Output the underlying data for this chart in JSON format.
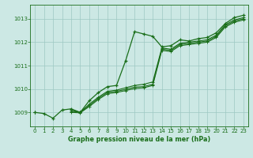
{
  "xlabel": "Graphe pression niveau de la mer (hPa)",
  "bg_color": "#cce8e4",
  "grid_color": "#9ec8c2",
  "line_color": "#1a6e1a",
  "xlim": [
    -0.5,
    23.5
  ],
  "ylim": [
    1008.4,
    1013.6
  ],
  "yticks": [
    1009,
    1010,
    1011,
    1012,
    1013
  ],
  "xticks": [
    0,
    1,
    2,
    3,
    4,
    5,
    6,
    7,
    8,
    9,
    10,
    11,
    12,
    13,
    14,
    15,
    16,
    17,
    18,
    19,
    20,
    21,
    22,
    23
  ],
  "hours": [
    0,
    1,
    2,
    3,
    4,
    5,
    6,
    7,
    8,
    9,
    10,
    11,
    12,
    13,
    14,
    15,
    16,
    17,
    18,
    19,
    20,
    21,
    22,
    23
  ],
  "line1": [
    1009.0,
    1008.95,
    1008.75,
    1009.1,
    1009.15,
    1009.0,
    1009.5,
    1009.85,
    1010.1,
    1010.15,
    1011.2,
    1012.45,
    1012.35,
    1012.25,
    1011.8,
    1011.85,
    1012.1,
    1012.05,
    1012.15,
    1012.2,
    1012.4,
    1012.8,
    1013.05,
    1013.15
  ],
  "line2": [
    1009.0,
    null,
    null,
    null,
    1009.1,
    1009.0,
    1009.35,
    1009.65,
    1009.9,
    1009.95,
    1010.05,
    1010.15,
    1010.2,
    1010.3,
    1011.75,
    1011.7,
    1011.95,
    1012.0,
    1012.05,
    1012.1,
    1012.3,
    1012.75,
    1012.95,
    1013.05
  ],
  "line3": [
    1009.0,
    null,
    null,
    null,
    1009.05,
    1009.0,
    1009.3,
    1009.6,
    1009.85,
    1009.9,
    1009.98,
    1010.08,
    1010.1,
    1010.2,
    1011.7,
    1011.65,
    1011.9,
    1011.95,
    1012.0,
    1012.05,
    1012.25,
    1012.7,
    1012.9,
    1013.0
  ],
  "line4": [
    1009.0,
    null,
    null,
    null,
    1009.0,
    1008.98,
    1009.25,
    1009.55,
    1009.8,
    1009.85,
    1009.93,
    1010.02,
    1010.05,
    1010.15,
    1011.65,
    1011.6,
    1011.85,
    1011.9,
    1011.95,
    1012.0,
    1012.2,
    1012.65,
    1012.85,
    1012.95
  ]
}
